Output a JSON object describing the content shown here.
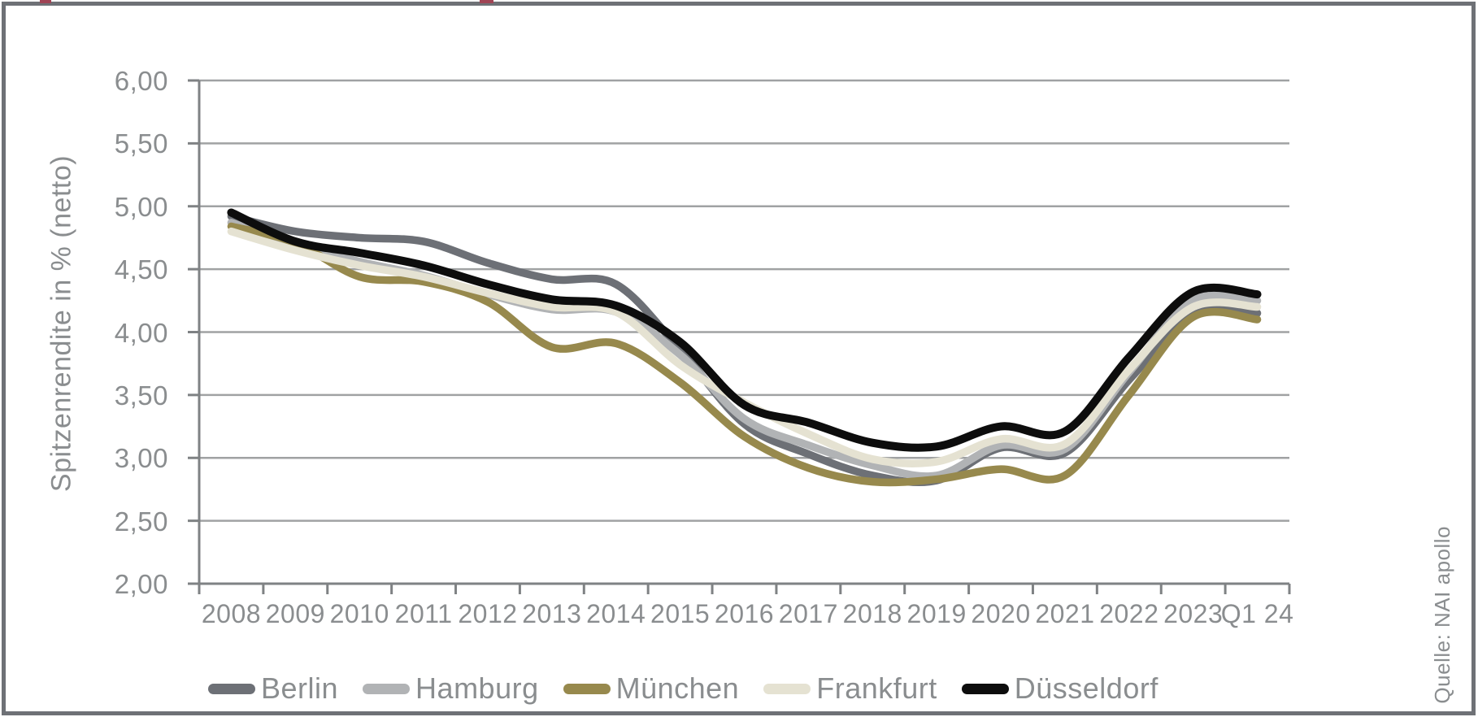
{
  "frame": {
    "border_color": "#6e7176"
  },
  "artifacts": {
    "description": "tiny descender remnants of a cropped magenta heading at the very top edge",
    "color": "#a04455",
    "marks": [
      {
        "x": 49,
        "w": 14
      },
      {
        "x": 590,
        "w": 17
      }
    ]
  },
  "y_axis": {
    "title": "Spitzenrendite in % (netto)",
    "tick_labels": [
      "6,00",
      "5,50",
      "5,00",
      "4,50",
      "4,00",
      "3,50",
      "3,00",
      "2,50",
      "2,00"
    ]
  },
  "x_axis": {
    "categories": [
      "2008",
      "2009",
      "2010",
      "2011",
      "2012",
      "2013",
      "2014",
      "2015",
      "2016",
      "2017",
      "2018",
      "2019",
      "2020",
      "2021",
      "2022",
      "2023",
      "Q1 24"
    ]
  },
  "legend": [
    {
      "label": "Berlin",
      "color": "#6d7076"
    },
    {
      "label": "Hamburg",
      "color": "#b1b3b5"
    },
    {
      "label": "München",
      "color": "#97894d"
    },
    {
      "label": "Frankfurt",
      "color": "#e5e2d2"
    },
    {
      "label": "Düsseldorf",
      "color": "#0d0d0d"
    }
  ],
  "source": {
    "label": "Quelle: NAI apollo"
  },
  "colors": {
    "grid": "#a0a2a3",
    "axis": "#7f8284",
    "text": "#8a8d8f"
  },
  "chart_data": {
    "type": "line",
    "title": "",
    "xlabel": "",
    "ylabel": "Spitzenrendite in % (netto)",
    "ylim": [
      2.0,
      6.0
    ],
    "ytick_step": 0.5,
    "grid": "horizontal",
    "legend_position": "bottom",
    "line_style": "smooth",
    "categories": [
      "2008",
      "2009",
      "2010",
      "2011",
      "2012",
      "2013",
      "2014",
      "2015",
      "2016",
      "2017",
      "2018",
      "2019",
      "2020",
      "2021",
      "2022",
      "2023",
      "Q1 24"
    ],
    "series": [
      {
        "name": "Berlin",
        "color": "#6d7076",
        "values": [
          4.92,
          4.8,
          4.75,
          4.72,
          4.55,
          4.42,
          4.38,
          3.86,
          3.27,
          3.03,
          2.86,
          2.82,
          3.08,
          3.04,
          3.62,
          4.14,
          4.15
        ]
      },
      {
        "name": "Hamburg",
        "color": "#b1b3b5",
        "values": [
          4.87,
          4.7,
          4.56,
          4.45,
          4.3,
          4.18,
          4.16,
          3.82,
          3.31,
          3.1,
          2.94,
          2.86,
          3.1,
          3.07,
          3.68,
          4.25,
          4.25
        ]
      },
      {
        "name": "München",
        "color": "#97894d",
        "values": [
          4.84,
          4.71,
          4.44,
          4.4,
          4.24,
          3.88,
          3.91,
          3.6,
          3.17,
          2.92,
          2.81,
          2.83,
          2.91,
          2.86,
          3.5,
          4.12,
          4.1
        ]
      },
      {
        "name": "Frankfurt",
        "color": "#e5e2d2",
        "values": [
          4.8,
          4.65,
          4.53,
          4.44,
          4.31,
          4.2,
          4.16,
          3.74,
          3.44,
          3.19,
          2.99,
          2.97,
          3.15,
          3.11,
          3.7,
          4.2,
          4.2
        ]
      },
      {
        "name": "Düsseldorf",
        "color": "#0d0d0d",
        "values": [
          4.95,
          4.72,
          4.63,
          4.53,
          4.38,
          4.26,
          4.21,
          3.92,
          3.42,
          3.28,
          3.12,
          3.09,
          3.25,
          3.21,
          3.8,
          4.32,
          4.3
        ]
      }
    ]
  }
}
